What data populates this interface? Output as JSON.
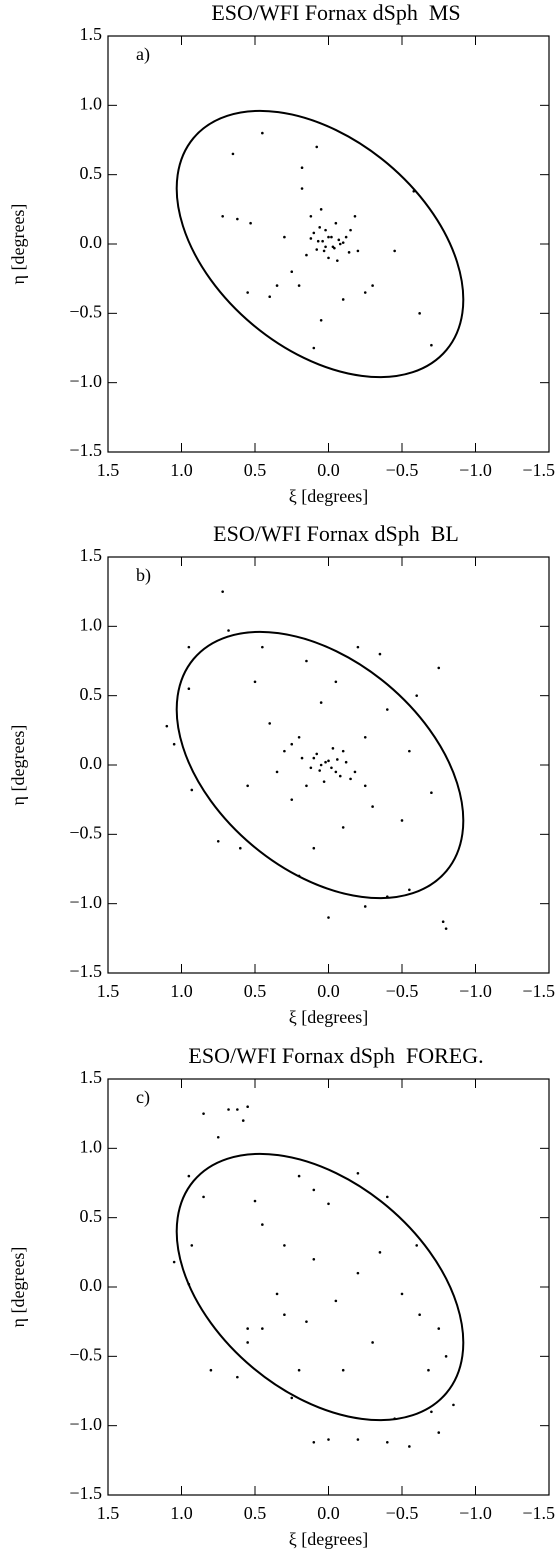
{
  "chart_data": [
    {
      "type": "scatter",
      "title": "ESO/WFI Fornax dSph  MS",
      "panel_label": "a)",
      "xlabel": "ξ [degrees]",
      "ylabel": "η [degrees]",
      "color": "#000000",
      "xlim": [
        1.5,
        -1.5
      ],
      "ylim": [
        -1.5,
        1.5
      ],
      "xticks": [
        1.5,
        {
          "value": 1,
          "label": "1.0"
        },
        0.5,
        {
          "value": 0,
          "label": "0.0"
        },
        {
          "value": -0.5,
          "label": "−0.5"
        },
        {
          "value": -1,
          "label": "−1.0"
        },
        {
          "value": -1.5,
          "label": "−1.5"
        }
      ],
      "yticks": [
        {
          "value": -1.5,
          "label": "−1.5"
        },
        {
          "value": -1,
          "label": "−1.0"
        },
        {
          "value": -0.5,
          "label": "−0.5"
        },
        {
          "value": 0,
          "label": "0.0"
        },
        0.5,
        {
          "value": 1,
          "label": "1.0"
        },
        1.5
      ],
      "x": [
        0.45,
        0.65,
        0.72,
        0.62,
        0.53,
        0.3,
        0.18,
        0.18,
        0.08,
        0.12,
        0.05,
        0.02,
        -0.02,
        -0.05,
        -0.08,
        -0.12,
        -0.15,
        -0.18,
        -0.2,
        0.0,
        0.03,
        0.07,
        0.1,
        -0.03,
        -0.07,
        0.15,
        0.25,
        0.35,
        0.4,
        0.55,
        -0.3,
        -0.25,
        -0.1,
        0.05,
        0.2,
        -0.45,
        -0.62,
        -0.58,
        -0.7,
        0.1,
        0.04,
        -0.04,
        0.08,
        -0.1,
        0.0,
        0.12,
        -0.14,
        0.06,
        -0.06,
        0.02
      ],
      "y": [
        0.8,
        0.65,
        0.2,
        0.18,
        0.15,
        0.05,
        0.4,
        0.55,
        0.7,
        0.2,
        0.25,
        0.1,
        0.05,
        0.15,
        0.0,
        0.05,
        0.1,
        0.2,
        -0.05,
        -0.1,
        -0.05,
        0.02,
        0.08,
        -0.02,
        0.03,
        -0.08,
        -0.2,
        -0.3,
        -0.38,
        -0.35,
        -0.3,
        -0.35,
        -0.4,
        -0.55,
        -0.3,
        -0.05,
        -0.5,
        0.38,
        -0.73,
        -0.75,
        0.02,
        -0.03,
        -0.04,
        0.01,
        0.05,
        0.04,
        -0.06,
        0.12,
        -0.12,
        -0.02
      ]
    },
    {
      "type": "scatter",
      "title": "ESO/WFI Fornax dSph  BL",
      "panel_label": "b)",
      "xlabel": "ξ [degrees]",
      "ylabel": "η [degrees]",
      "color": "#000000",
      "xlim": [
        1.5,
        -1.5
      ],
      "ylim": [
        -1.5,
        1.5
      ],
      "xticks": [
        1.5,
        {
          "value": 1,
          "label": "1.0"
        },
        0.5,
        {
          "value": 0,
          "label": "0.0"
        },
        {
          "value": -0.5,
          "label": "−0.5"
        },
        {
          "value": -1,
          "label": "−1.0"
        },
        {
          "value": -1.5,
          "label": "−1.5"
        }
      ],
      "yticks": [
        {
          "value": -1.5,
          "label": "−1.5"
        },
        {
          "value": -1,
          "label": "−1.0"
        },
        {
          "value": -0.5,
          "label": "−0.5"
        },
        {
          "value": 0,
          "label": "0.0"
        },
        0.5,
        {
          "value": 1,
          "label": "1.0"
        },
        1.5
      ],
      "x": [
        0.72,
        0.68,
        0.95,
        0.95,
        1.1,
        1.05,
        0.93,
        0.75,
        0.6,
        0.5,
        0.4,
        0.3,
        0.2,
        0.1,
        0.05,
        0.0,
        -0.05,
        -0.1,
        -0.15,
        0.15,
        0.25,
        0.35,
        -0.25,
        -0.3,
        -0.4,
        -0.5,
        -0.6,
        -0.75,
        -0.7,
        -0.8,
        -0.78,
        -0.55,
        -0.4,
        -0.25,
        0.0,
        0.2,
        0.1,
        -0.1,
        0.05,
        -0.05,
        0.15,
        -0.2,
        0.45,
        -0.35,
        0.02,
        -0.02,
        0.06,
        -0.06,
        0.08,
        -0.08,
        0.12,
        -0.12,
        0.03,
        -0.03,
        0.18,
        -0.18,
        0.25,
        -0.25,
        0.55,
        -0.55
      ],
      "y": [
        1.25,
        0.97,
        0.85,
        0.55,
        0.28,
        0.15,
        -0.18,
        -0.55,
        -0.6,
        0.6,
        0.3,
        0.1,
        0.2,
        0.05,
        0.0,
        0.03,
        -0.05,
        0.1,
        -0.1,
        -0.15,
        -0.25,
        -0.05,
        0.2,
        -0.3,
        0.4,
        -0.4,
        0.5,
        0.7,
        -0.2,
        -1.18,
        -1.13,
        -0.9,
        -0.95,
        -1.02,
        -1.1,
        -0.8,
        -0.6,
        -0.45,
        0.45,
        0.6,
        0.75,
        0.85,
        0.85,
        0.8,
        0.02,
        -0.02,
        -0.04,
        0.04,
        0.08,
        -0.08,
        -0.02,
        0.02,
        -0.12,
        0.12,
        0.05,
        -0.05,
        0.15,
        -0.15,
        -0.15,
        0.1
      ]
    },
    {
      "type": "scatter",
      "title": "ESO/WFI Fornax dSph  FOREG.",
      "panel_label": "c)",
      "xlabel": "ξ [degrees]",
      "ylabel": "η [degrees]",
      "color": "#000000",
      "xlim": [
        1.5,
        -1.5
      ],
      "ylim": [
        -1.5,
        1.5
      ],
      "xticks": [
        1.5,
        {
          "value": 1,
          "label": "1.0"
        },
        0.5,
        {
          "value": 0,
          "label": "0.0"
        },
        {
          "value": -0.5,
          "label": "−0.5"
        },
        {
          "value": -1,
          "label": "−1.0"
        },
        {
          "value": -1.5,
          "label": "−1.5"
        }
      ],
      "yticks": [
        {
          "value": -1.5,
          "label": "−1.5"
        },
        {
          "value": -1,
          "label": "−1.0"
        },
        {
          "value": -0.5,
          "label": "−0.5"
        },
        {
          "value": 0,
          "label": "0.0"
        },
        0.5,
        {
          "value": 1,
          "label": "1.0"
        },
        1.5
      ],
      "x": [
        0.85,
        0.62,
        0.58,
        0.55,
        0.68,
        0.75,
        0.95,
        0.85,
        0.93,
        1.05,
        0.95,
        0.8,
        0.62,
        0.55,
        0.55,
        0.45,
        0.35,
        0.3,
        0.45,
        0.5,
        0.2,
        0.1,
        0.0,
        -0.2,
        -0.4,
        -0.6,
        -0.62,
        -0.75,
        -0.8,
        -0.68,
        -0.7,
        -0.75,
        -0.55,
        -0.4,
        -0.2,
        0.1,
        0.0,
        -0.1,
        -0.3,
        -0.2,
        0.1,
        0.2,
        0.25,
        -0.05,
        -0.35,
        0.3,
        -0.5,
        0.15,
        -0.85,
        -0.45
      ],
      "y": [
        1.25,
        1.28,
        1.2,
        1.3,
        1.28,
        1.08,
        0.8,
        0.65,
        0.3,
        0.18,
        0.02,
        -0.6,
        -0.65,
        -0.3,
        -0.4,
        -0.3,
        -0.05,
        0.3,
        0.45,
        0.62,
        0.8,
        0.7,
        0.6,
        0.82,
        0.65,
        0.3,
        -0.2,
        -0.3,
        -0.5,
        -0.6,
        -0.9,
        -1.05,
        -1.15,
        -1.12,
        -1.1,
        -1.12,
        -1.1,
        -0.6,
        -0.4,
        0.1,
        0.2,
        -0.6,
        -0.8,
        -0.1,
        0.25,
        -0.2,
        -0.05,
        -0.25,
        -0.85,
        -0.95
      ]
    }
  ]
}
